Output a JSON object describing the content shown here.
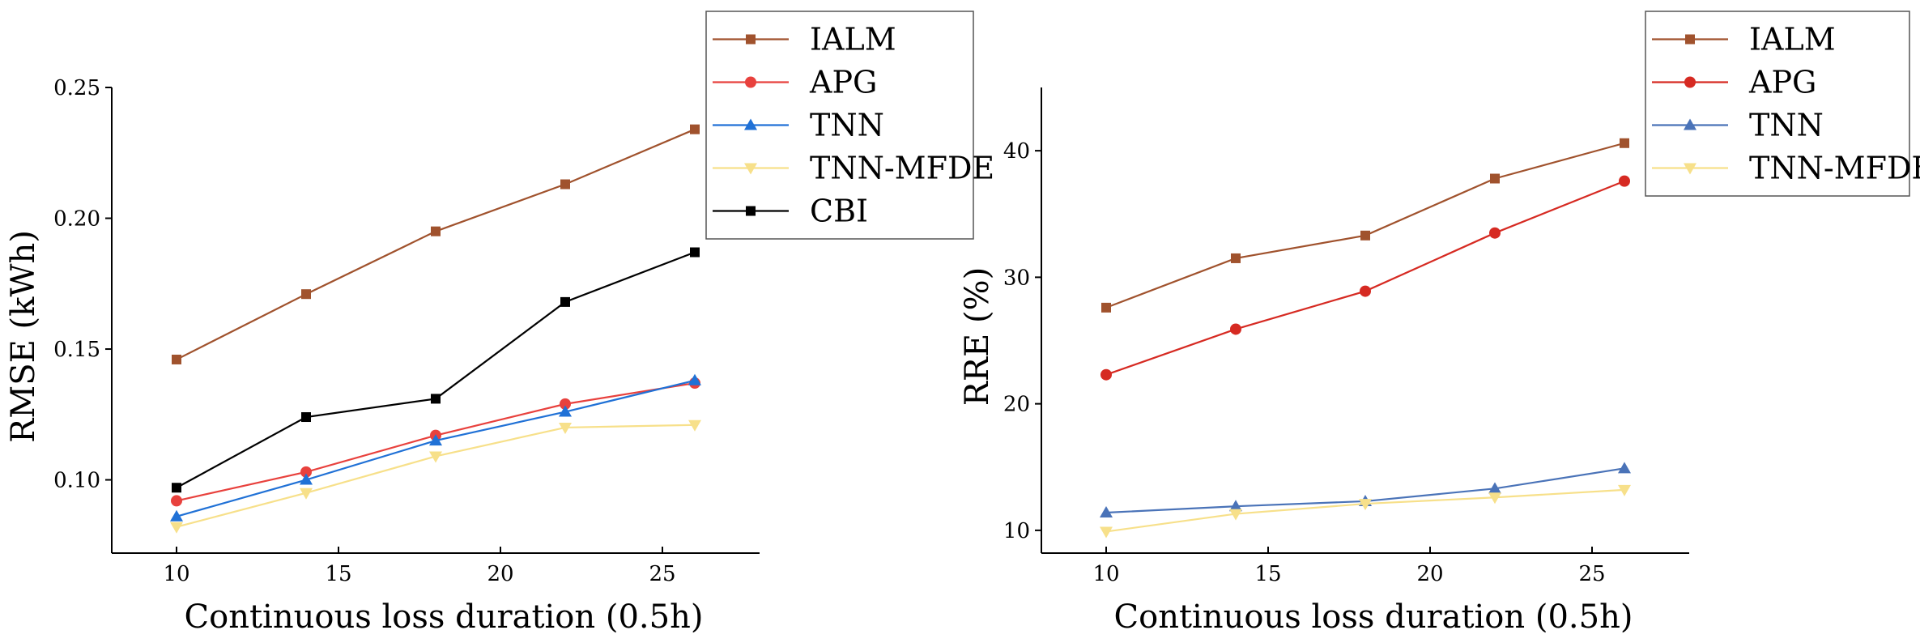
{
  "chart_data": [
    {
      "type": "line",
      "xlabel": "Continuous loss duration (0.5h)",
      "ylabel": "RMSE (kWh)",
      "xlim": [
        8,
        28
      ],
      "ylim": [
        0.072,
        0.25
      ],
      "xticks": [
        "10",
        "15",
        "20",
        "25"
      ],
      "xtick_values": [
        10,
        15,
        20,
        25
      ],
      "yticks": [
        "0.10",
        "0.15",
        "0.20",
        "0.25"
      ],
      "ytick_values": [
        0.1,
        0.15,
        0.2,
        0.25
      ],
      "legend_position": "top-right",
      "grid": false,
      "x": [
        10,
        14,
        18,
        22,
        26
      ],
      "series": [
        {
          "name": "IALM",
          "values": [
            0.146,
            0.171,
            0.195,
            0.213,
            0.234
          ],
          "color": "#a0522d",
          "marker": "square"
        },
        {
          "name": "APG",
          "values": [
            0.092,
            0.103,
            0.117,
            0.129,
            0.137
          ],
          "color": "#e8413d",
          "marker": "circle"
        },
        {
          "name": "TNN",
          "values": [
            0.086,
            0.1,
            0.115,
            0.126,
            0.138
          ],
          "color": "#2071d6",
          "marker": "triangle-up"
        },
        {
          "name": "TNN-MFDE",
          "values": [
            0.082,
            0.095,
            0.109,
            0.12,
            0.121
          ],
          "color": "#f7e08a",
          "marker": "triangle-down"
        },
        {
          "name": "CBI",
          "values": [
            0.097,
            0.124,
            0.131,
            0.168,
            0.187
          ],
          "color": "#000000",
          "marker": "square"
        }
      ]
    },
    {
      "type": "line",
      "xlabel": "Continuous loss duration (0.5h)",
      "ylabel": "RRE (%)",
      "xlim": [
        8,
        28
      ],
      "ylim": [
        8.2,
        45
      ],
      "xticks": [
        "10",
        "15",
        "20",
        "25"
      ],
      "xtick_values": [
        10,
        15,
        20,
        25
      ],
      "yticks": [
        "10",
        "20",
        "30",
        "40"
      ],
      "ytick_values": [
        10,
        20,
        30,
        40
      ],
      "legend_position": "top-right",
      "grid": false,
      "x": [
        10,
        14,
        18,
        22,
        26
      ],
      "series": [
        {
          "name": "IALM",
          "values": [
            27.6,
            31.5,
            33.3,
            37.8,
            40.6
          ],
          "color": "#a0522d",
          "marker": "square"
        },
        {
          "name": "APG",
          "values": [
            22.3,
            25.9,
            28.9,
            33.5,
            37.6
          ],
          "color": "#d62a22",
          "marker": "circle"
        },
        {
          "name": "TNN",
          "values": [
            11.4,
            11.9,
            12.3,
            13.3,
            14.9
          ],
          "color": "#4a73b8",
          "marker": "triangle-up"
        },
        {
          "name": "TNN-MFDE",
          "values": [
            9.9,
            11.3,
            12.1,
            12.6,
            13.2
          ],
          "color": "#f7e08a",
          "marker": "triangle-down"
        }
      ]
    }
  ]
}
